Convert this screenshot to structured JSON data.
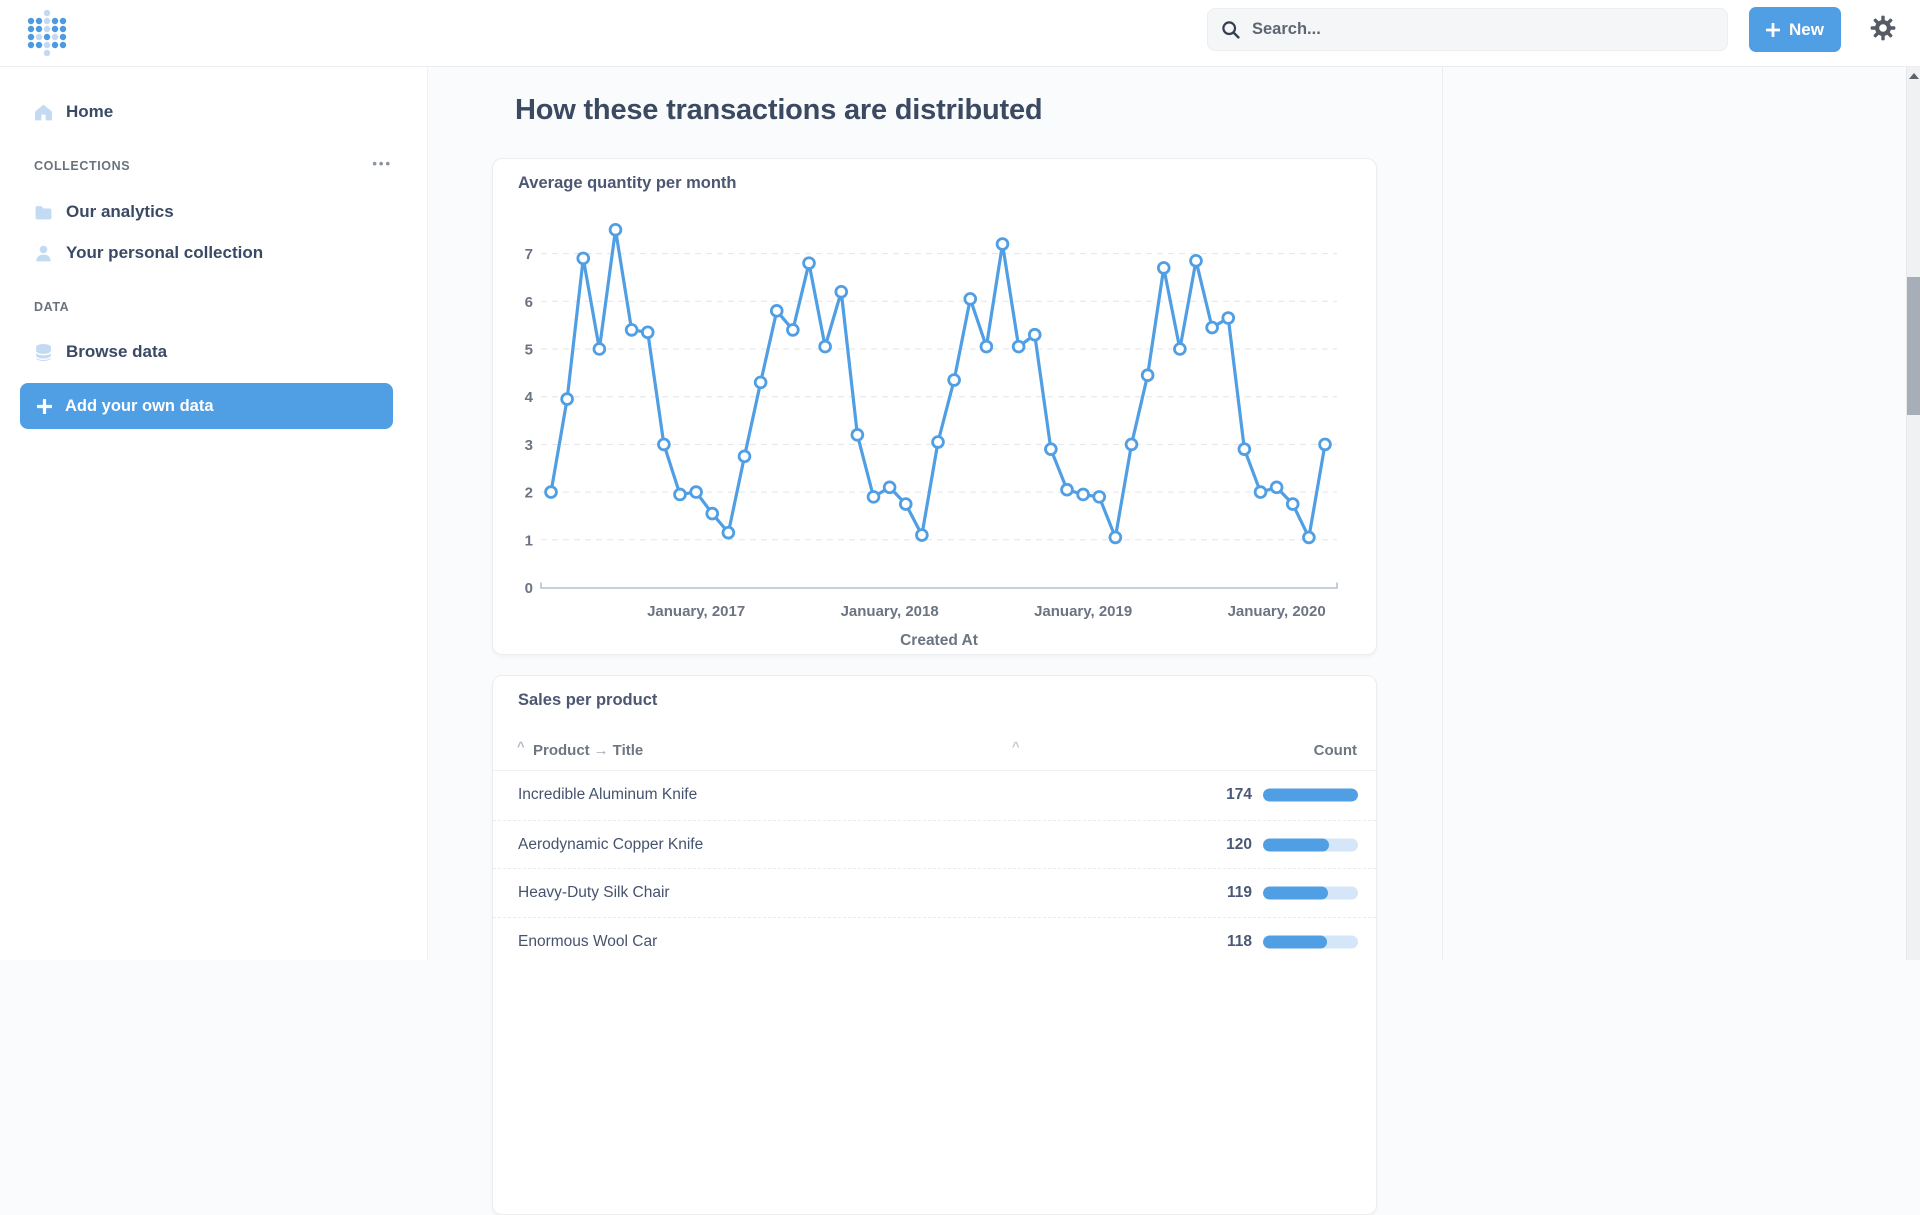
{
  "topbar": {
    "search_placeholder": "Search...",
    "new_button_label": "New"
  },
  "sidebar": {
    "home_label": "Home",
    "collections_header": "COLLECTIONS",
    "collections_menu_glyph": "•••",
    "collections": [
      {
        "label": "Our analytics"
      },
      {
        "label": "Your personal collection"
      }
    ],
    "data_header": "DATA",
    "browse_label": "Browse data",
    "add_data_label": "Add your own data"
  },
  "main": {
    "heading": "How these transactions are distributed"
  },
  "chart_card": {
    "title": "Average quantity per month"
  },
  "chart_data": {
    "type": "line",
    "title": "Average quantity per month",
    "xlabel": "Created At",
    "ylabel": "",
    "ylim": [
      0,
      7.5
    ],
    "grid": "dashed-horizontal",
    "legend": "none",
    "series_color": "#509ee3",
    "y_ticks": [
      0,
      1,
      2,
      3,
      4,
      5,
      6,
      7
    ],
    "x_tick_labels": [
      "January, 2017",
      "January, 2018",
      "January, 2019",
      "January, 2020"
    ],
    "x_tick_indices": [
      9,
      21,
      33,
      45
    ],
    "x": [
      "2016-04",
      "2016-05",
      "2016-06",
      "2016-07",
      "2016-08",
      "2016-09",
      "2016-10",
      "2016-11",
      "2016-12",
      "2017-01",
      "2017-02",
      "2017-03",
      "2017-04",
      "2017-05",
      "2017-06",
      "2017-07",
      "2017-08",
      "2017-09",
      "2017-10",
      "2017-11",
      "2017-12",
      "2018-01",
      "2018-02",
      "2018-03",
      "2018-04",
      "2018-05",
      "2018-06",
      "2018-07",
      "2018-08",
      "2018-09",
      "2018-10",
      "2018-11",
      "2018-12",
      "2019-01",
      "2019-02",
      "2019-03",
      "2019-04",
      "2019-05",
      "2019-06",
      "2019-07",
      "2019-08",
      "2019-09",
      "2019-10",
      "2019-11",
      "2019-12",
      "2020-01",
      "2020-02",
      "2020-03",
      "2020-04"
    ],
    "values": [
      2.0,
      3.95,
      6.9,
      5.0,
      7.5,
      5.4,
      5.35,
      3.0,
      1.95,
      2.0,
      1.55,
      1.15,
      2.75,
      4.3,
      5.8,
      5.4,
      6.8,
      5.05,
      6.2,
      3.2,
      1.9,
      2.1,
      1.75,
      1.1,
      3.05,
      4.35,
      6.05,
      5.05,
      7.2,
      5.05,
      5.3,
      2.9,
      2.05,
      1.95,
      1.9,
      1.05,
      3.0,
      4.45,
      6.7,
      5.0,
      6.85,
      5.45,
      5.65,
      2.9,
      2.0,
      2.1,
      1.75,
      1.05,
      3.0
    ]
  },
  "sales_table": {
    "title": "Sales per product",
    "columns": {
      "product": "Product",
      "arrow": "→",
      "title": "Title",
      "count": "Count",
      "sort_caret": "^",
      "mid_caret": "^"
    },
    "max_count": 174,
    "rows": [
      {
        "name": "Incredible Aluminum Knife",
        "count": 174
      },
      {
        "name": "Aerodynamic Copper Knife",
        "count": 120
      },
      {
        "name": "Heavy-Duty Silk Chair",
        "count": 119
      },
      {
        "name": "Enormous Wool Car",
        "count": 118
      }
    ]
  }
}
